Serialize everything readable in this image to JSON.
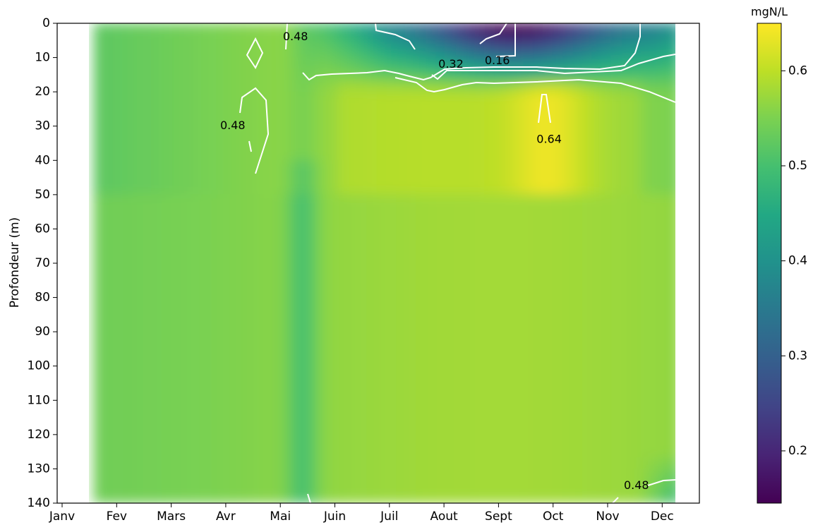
{
  "chart_data": {
    "type": "heatmap",
    "ylabel": "Profondeur (m)",
    "x_ticks": [
      "Janv",
      "Fev",
      "Mars",
      "Avr",
      "Mai",
      "Juin",
      "Juil",
      "Aout",
      "Sept",
      "Oct",
      "Nov",
      "Dec"
    ],
    "y_ticks": [
      0,
      10,
      20,
      30,
      40,
      50,
      60,
      70,
      80,
      90,
      100,
      110,
      120,
      130,
      140
    ],
    "ylim": [
      140,
      0
    ],
    "y_inverted": true,
    "colorbar": {
      "label": "mgN/L",
      "ticks": [
        0.2,
        0.3,
        0.4,
        0.5,
        0.6
      ],
      "range": [
        0.145,
        0.65
      ],
      "colormap": "viridis"
    },
    "contour_levels": [
      0.16,
      0.32,
      0.48,
      0.64
    ],
    "contour_labels": [
      {
        "text": "0.48",
        "month": 4.2,
        "depth": 4
      },
      {
        "text": "0.32",
        "month": 7.05,
        "depth": 12
      },
      {
        "text": "0.16",
        "month": 7.9,
        "depth": 11
      },
      {
        "text": "0.48",
        "month": 3.05,
        "depth": 30
      },
      {
        "text": "0.64",
        "month": 8.85,
        "depth": 34
      },
      {
        "text": "0.48",
        "month": 10.45,
        "depth": 135
      }
    ],
    "grid": false
  }
}
